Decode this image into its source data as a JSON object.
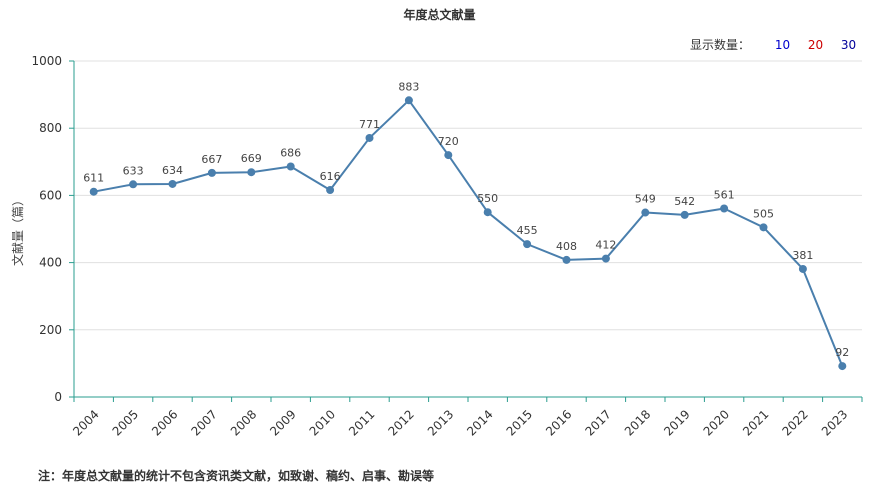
{
  "title": "年度总文献量",
  "display_count": {
    "label": "显示数量：",
    "options": [
      {
        "text": "10",
        "color": "#0000cc"
      },
      {
        "text": "20",
        "color": "#cc0000"
      },
      {
        "text": "30",
        "color": "#000099"
      }
    ]
  },
  "footnote": "注：年度总文献量的统计不包含资讯类文献，如致谢、稿约、启事、勘误等",
  "colors": {
    "line": "#4a7fad",
    "axis": "#2a9d8f",
    "grid": "#e0e0e0"
  },
  "chart_data": {
    "type": "line",
    "title": "年度总文献量",
    "xlabel": "",
    "ylabel": "文献量（篇）",
    "categories": [
      "2004",
      "2005",
      "2006",
      "2007",
      "2008",
      "2009",
      "2010",
      "2011",
      "2012",
      "2013",
      "2014",
      "2015",
      "2016",
      "2017",
      "2018",
      "2019",
      "2020",
      "2021",
      "2022",
      "2023"
    ],
    "series": [
      {
        "values": [
          611,
          633,
          634,
          667,
          669,
          686,
          616,
          771,
          883,
          720,
          550,
          455,
          408,
          412,
          549,
          542,
          561,
          505,
          381,
          92
        ]
      }
    ],
    "ylim": [
      0,
      1000
    ],
    "yticks": [
      0,
      200,
      400,
      600,
      800,
      1000
    ],
    "grid": true
  }
}
